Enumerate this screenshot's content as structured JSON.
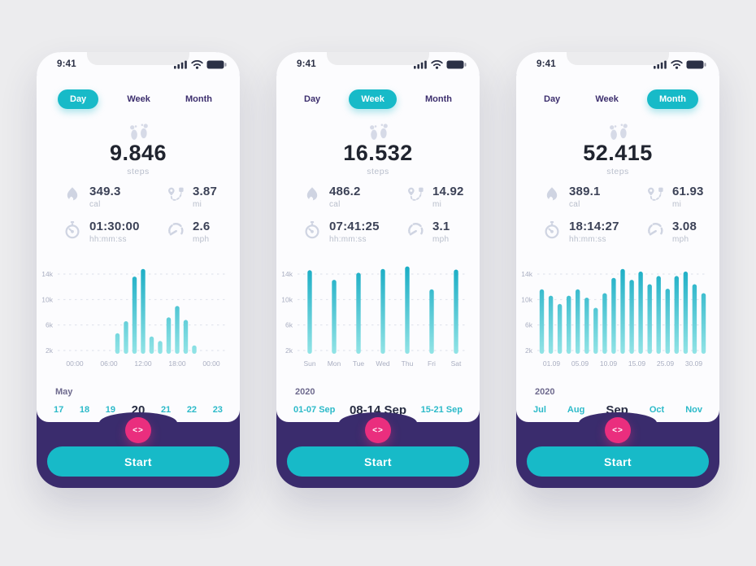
{
  "page": {
    "background": "#ececee"
  },
  "colors": {
    "accent_teal": "#17bac8",
    "accent_pink": "#ea2e7e",
    "phone_purple": "#3a2c6d",
    "bar_gradient_top": "#1aadc5",
    "bar_gradient_bottom": "#93e4e6",
    "date_teal": "#2cbac9",
    "text_dark": "#20242f",
    "text_muted": "#b9bfcc"
  },
  "phones": [
    {
      "status_bar": {
        "time": "9:41",
        "icons": [
          "signal-icon",
          "wifi-icon",
          "battery-icon"
        ]
      },
      "tabs": [
        {
          "label": "Day",
          "active": true
        },
        {
          "label": "Week",
          "active": false
        },
        {
          "label": "Month",
          "active": false
        }
      ],
      "steps": {
        "icon": "footprints-icon",
        "value": "9.846",
        "label": "steps"
      },
      "stats": [
        {
          "icon": "flame-icon",
          "value": "349.3",
          "unit": "cal"
        },
        {
          "icon": "route-icon",
          "value": "3.87",
          "unit": "mi"
        },
        {
          "icon": "stopwatch-icon",
          "value": "01:30:00",
          "unit": "hh:mm:ss"
        },
        {
          "icon": "speedometer-icon",
          "value": "2.6",
          "unit": "mph"
        }
      ],
      "selector": {
        "period_label": "May",
        "options": [
          "17",
          "18",
          "19",
          "20",
          "21",
          "22",
          "23"
        ],
        "active_index": 3
      },
      "fab": {
        "icon": "prev-next-chevrons-icon",
        "glyph": "<>"
      },
      "start_label": "Start"
    },
    {
      "status_bar": {
        "time": "9:41",
        "icons": [
          "signal-icon",
          "wifi-icon",
          "battery-icon"
        ]
      },
      "tabs": [
        {
          "label": "Day",
          "active": false
        },
        {
          "label": "Week",
          "active": true
        },
        {
          "label": "Month",
          "active": false
        }
      ],
      "steps": {
        "icon": "footprints-icon",
        "value": "16.532",
        "label": "steps"
      },
      "stats": [
        {
          "icon": "flame-icon",
          "value": "486.2",
          "unit": "cal"
        },
        {
          "icon": "route-icon",
          "value": "14.92",
          "unit": "mi"
        },
        {
          "icon": "stopwatch-icon",
          "value": "07:41:25",
          "unit": "hh:mm:ss"
        },
        {
          "icon": "speedometer-icon",
          "value": "3.1",
          "unit": "mph"
        }
      ],
      "selector": {
        "period_label": "2020",
        "options": [
          "01-07 Sep",
          "08-14 Sep",
          "15-21 Sep"
        ],
        "active_index": 1
      },
      "fab": {
        "icon": "prev-next-chevrons-icon",
        "glyph": "<>"
      },
      "start_label": "Start"
    },
    {
      "status_bar": {
        "time": "9:41",
        "icons": [
          "signal-icon",
          "wifi-icon",
          "battery-icon"
        ]
      },
      "tabs": [
        {
          "label": "Day",
          "active": false
        },
        {
          "label": "Week",
          "active": false
        },
        {
          "label": "Month",
          "active": true
        }
      ],
      "steps": {
        "icon": "footprints-icon",
        "value": "52.415",
        "label": "steps"
      },
      "stats": [
        {
          "icon": "flame-icon",
          "value": "389.1",
          "unit": "cal"
        },
        {
          "icon": "route-icon",
          "value": "61.93",
          "unit": "mi"
        },
        {
          "icon": "stopwatch-icon",
          "value": "18:14:27",
          "unit": "hh:mm:ss"
        },
        {
          "icon": "speedometer-icon",
          "value": "3.08",
          "unit": "mph"
        }
      ],
      "selector": {
        "period_label": "2020",
        "options": [
          "Jul",
          "Aug",
          "Sep",
          "Oct",
          "Nov"
        ],
        "active_index": 2
      },
      "fab": {
        "icon": "prev-next-chevrons-icon",
        "glyph": "<>"
      },
      "start_label": "Start"
    }
  ],
  "chart_data": [
    {
      "type": "bar",
      "x_hours": [
        7.5,
        9,
        10.5,
        12,
        13.5,
        15,
        16.5,
        18,
        19.5,
        21
      ],
      "x_range": [
        0,
        24
      ],
      "values": [
        4700,
        6600,
        13600,
        14800,
        4200,
        3500,
        7200,
        9000,
        6800,
        2800
      ],
      "xticks": [
        "00:00",
        "06:00",
        "12:00",
        "18:00",
        "00:00"
      ],
      "yticks": [
        {
          "value": 2000,
          "label": "2k"
        },
        {
          "value": 6000,
          "label": "6k"
        },
        {
          "value": 10000,
          "label": "10k"
        },
        {
          "value": 14000,
          "label": "14k"
        }
      ],
      "ylim": [
        2000,
        15500
      ],
      "grid": "dashed-horizontal",
      "legend": false
    },
    {
      "type": "bar",
      "categories": [
        "Sun",
        "Mon",
        "Tue",
        "Wed",
        "Thu",
        "Fri",
        "Sat"
      ],
      "values": [
        14600,
        13100,
        14200,
        14800,
        15200,
        11600,
        14700
      ],
      "xticks": [
        "Sun",
        "Mon",
        "Tue",
        "Wed",
        "Thu",
        "Fri",
        "Sat"
      ],
      "yticks": [
        {
          "value": 2000,
          "label": "2k"
        },
        {
          "value": 6000,
          "label": "6k"
        },
        {
          "value": 10000,
          "label": "10k"
        },
        {
          "value": 14000,
          "label": "14k"
        }
      ],
      "ylim": [
        2000,
        15500
      ],
      "grid": "dashed-horizontal",
      "legend": false
    },
    {
      "type": "bar",
      "values": [
        11600,
        10600,
        9300,
        10600,
        11600,
        10300,
        8700,
        11000,
        13400,
        14800,
        13100,
        14400,
        12400,
        13700,
        11700,
        13700,
        14400,
        12400,
        11000
      ],
      "xticks": [
        "01.09",
        "05.09",
        "10.09",
        "15.09",
        "25.09",
        "30.09"
      ],
      "yticks": [
        {
          "value": 2000,
          "label": "2k"
        },
        {
          "value": 6000,
          "label": "6k"
        },
        {
          "value": 10000,
          "label": "10k"
        },
        {
          "value": 14000,
          "label": "14k"
        }
      ],
      "ylim": [
        2000,
        15500
      ],
      "grid": "dashed-horizontal",
      "legend": false
    }
  ]
}
